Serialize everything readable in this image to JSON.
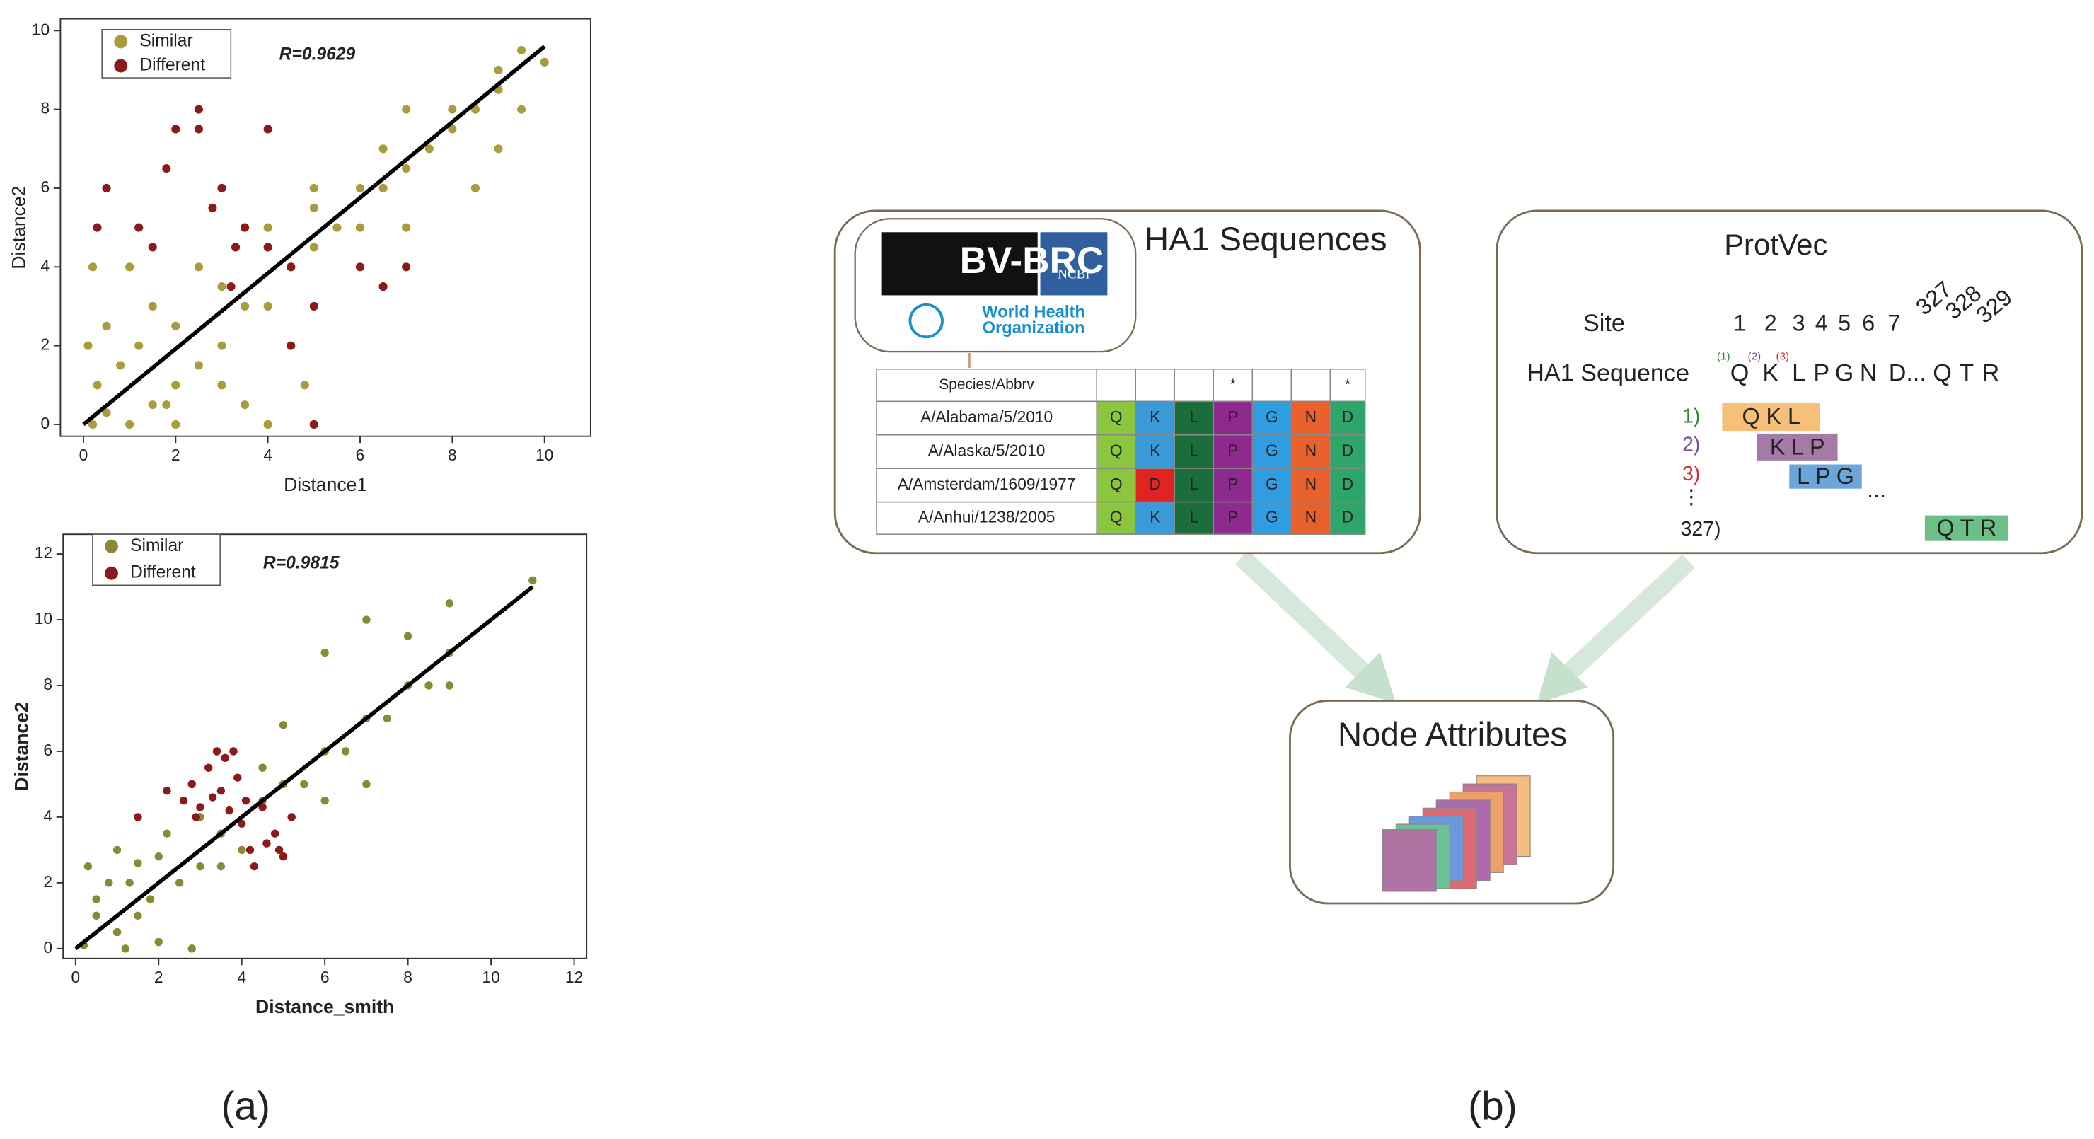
{
  "chart_data": [
    {
      "type": "scatter",
      "xlabel": "Distance1",
      "ylabel": "Distance2",
      "annotation": "R=0.9629",
      "xlim": [
        -0.5,
        11
      ],
      "ylim": [
        -0.3,
        10.3
      ],
      "xticks": [
        0,
        2,
        4,
        6,
        8,
        10
      ],
      "yticks": [
        0,
        2,
        4,
        6,
        8,
        10
      ],
      "legend": "upper left",
      "series": [
        {
          "name": "Similar",
          "color": "#a99c3b",
          "x": [
            0.2,
            0.5,
            1,
            1.5,
            0.3,
            0.8,
            1.2,
            2,
            2.5,
            0.5,
            1.5,
            2,
            3,
            3.5,
            0.2,
            1,
            2.5,
            3,
            4,
            4.5,
            4,
            5,
            5,
            5.5,
            6,
            6,
            6.5,
            7,
            6.5,
            7.5,
            8,
            8,
            8.5,
            9,
            9,
            9.5,
            10,
            3,
            2,
            4.8,
            3.5,
            4,
            1.8,
            0.1,
            5,
            7,
            8.5,
            9,
            7,
            9.5
          ],
          "y": [
            0,
            0.3,
            0,
            0.5,
            1,
            1.5,
            2,
            1,
            1.5,
            2.5,
            3,
            2.5,
            2,
            3,
            4,
            4,
            4,
            3.5,
            3,
            4,
            5,
            4.5,
            5.5,
            5,
            5,
            6,
            6,
            6.5,
            7,
            7,
            7.5,
            8,
            8,
            8.5,
            9,
            8,
            9.2,
            1,
            0,
            1,
            0.5,
            0,
            0.5,
            2,
            6,
            5,
            6,
            7,
            8,
            9.5
          ]
        },
        {
          "name": "Different",
          "color": "#8b1a1a",
          "x": [
            0.3,
            0.5,
            1.2,
            1.8,
            2,
            2.5,
            2.8,
            3,
            3.5,
            3.3,
            4,
            4,
            5,
            4.5,
            5,
            6,
            7,
            6.5,
            2.5,
            3.2,
            1.5,
            4.5
          ],
          "y": [
            5,
            6,
            5,
            6.5,
            7.5,
            8,
            5.5,
            6,
            5,
            4.5,
            7.5,
            4.5,
            3,
            2,
            0,
            4,
            4,
            3.5,
            7.5,
            3.5,
            4.5,
            4
          ]
        }
      ],
      "fit_line": {
        "color": "#000000",
        "x": [
          0,
          10
        ],
        "y": [
          0,
          9.6
        ]
      }
    },
    {
      "type": "scatter",
      "xlabel": "Distance_smith",
      "ylabel": "Distance2",
      "annotation": "R=0.9815",
      "xlim": [
        -0.3,
        12.3
      ],
      "ylim": [
        -0.3,
        12.6
      ],
      "xticks": [
        0,
        2,
        4,
        6,
        8,
        10,
        12
      ],
      "yticks": [
        0,
        2,
        4,
        6,
        8,
        10,
        12
      ],
      "legend": "upper left",
      "series": [
        {
          "name": "Similar",
          "color": "#8a8a36",
          "x": [
            0.2,
            0.5,
            1,
            1.3,
            1.8,
            2,
            2.5,
            0.3,
            1,
            1.5,
            2.2,
            3,
            3.5,
            4,
            4.5,
            5,
            5.5,
            6,
            6.5,
            7,
            7.5,
            8,
            8.5,
            9,
            9,
            2.8,
            1.2,
            0.8,
            3,
            5,
            6,
            7,
            8,
            9,
            11,
            6,
            7,
            4.5,
            3.5,
            2,
            0.5,
            1.5
          ],
          "y": [
            0.1,
            1,
            0.5,
            2,
            1.5,
            2.8,
            2,
            2.5,
            3,
            1,
            3.5,
            2.5,
            3.5,
            3,
            4.5,
            5,
            5,
            6,
            6,
            7,
            7,
            8,
            8,
            9,
            10.5,
            0,
            0,
            2,
            4,
            6.8,
            9,
            10,
            9.5,
            8,
            11.2,
            4.5,
            5,
            5.5,
            2.5,
            0.2,
            1.5,
            2.6
          ]
        },
        {
          "name": "Different",
          "color": "#8b1a1a",
          "x": [
            2.6,
            2.8,
            3,
            3.2,
            3.5,
            3.8,
            3.9,
            2.9,
            3.3,
            3.6,
            1.5,
            2.2,
            4,
            4.2,
            4.5,
            4.8,
            5,
            4.3,
            4.6,
            5.2,
            4.1,
            4.9,
            3.4,
            3.7
          ],
          "y": [
            4.5,
            5,
            4.3,
            5.5,
            4.8,
            6,
            5.2,
            4,
            4.6,
            5.8,
            4,
            4.8,
            3.8,
            3,
            4.3,
            3.5,
            2.8,
            2.5,
            3.2,
            4,
            4.5,
            3,
            6,
            4.2
          ]
        }
      ],
      "fit_line": {
        "color": "#000000",
        "x": [
          0,
          11
        ],
        "y": [
          0,
          11
        ]
      }
    }
  ],
  "panel_labels": [
    "(a)",
    "(b)"
  ],
  "diagram": {
    "ha1": {
      "title": "HA1 Sequences",
      "logos": [
        "BV-BRC",
        "NCBI",
        "World Health",
        "Organization"
      ],
      "header": [
        "Species/Abbrv",
        null,
        null,
        null,
        "*",
        null,
        null,
        "*"
      ],
      "rows": [
        {
          "name": "A/Alabama/5/2010",
          "residues": [
            "Q",
            "K",
            "L",
            "P",
            "G",
            "N",
            "D"
          ],
          "colors": [
            "#8cc63f",
            "#3b9bd8",
            "#1b6e3c",
            "#8e2a8e",
            "#2f9de0",
            "#e8602c",
            "#2ea66a"
          ]
        },
        {
          "name": "A/Alaska/5/2010",
          "residues": [
            "Q",
            "K",
            "L",
            "P",
            "G",
            "N",
            "D"
          ],
          "colors": [
            "#8cc63f",
            "#3b9bd8",
            "#1b6e3c",
            "#8e2a8e",
            "#2f9de0",
            "#e8602c",
            "#2ea66a"
          ]
        },
        {
          "name": "A/Amsterdam/1609/1977",
          "residues": [
            "Q",
            "D",
            "L",
            "P",
            "G",
            "N",
            "D"
          ],
          "colors": [
            "#8cc63f",
            "#e02424",
            "#1b6e3c",
            "#8e2a8e",
            "#2f9de0",
            "#e8602c",
            "#2ea66a"
          ]
        },
        {
          "name": "A/Anhui/1238/2005",
          "residues": [
            "Q",
            "K",
            "L",
            "P",
            "G",
            "N",
            "D"
          ],
          "colors": [
            "#8cc63f",
            "#3b9bd8",
            "#1b6e3c",
            "#8e2a8e",
            "#2f9de0",
            "#e8602c",
            "#2ea66a"
          ]
        }
      ]
    },
    "protvec": {
      "title": "ProtVec",
      "site_label": "Site",
      "sites": [
        1,
        2,
        3,
        4,
        5,
        6,
        7,
        327,
        328,
        329
      ],
      "sequence_label": "HA1 Sequence",
      "sequence": [
        "Q",
        "K",
        "L",
        "P",
        "G",
        "N",
        "D...",
        "Q",
        "T",
        "R"
      ],
      "superscripts": [
        {
          "text": "(1)",
          "color": "#2e8b3a"
        },
        {
          "text": "(2)",
          "color": "#7b4fa0"
        },
        {
          "text": "(3)",
          "color": "#d0303a"
        }
      ],
      "windows": [
        {
          "index": "1)",
          "index_color": "#2e8b3a",
          "text": "Q K L",
          "color": "#f5b96b"
        },
        {
          "index": "2)",
          "index_color": "#7b4fa0",
          "text": "K L P",
          "color": "#9c6b9c"
        },
        {
          "index": "3)",
          "index_color": "#d0303a",
          "text": "L P G",
          "color": "#5b9bd5"
        },
        {
          "index": "⋮",
          "index_color": "#222222",
          "text": "...",
          "color": null
        },
        {
          "index": "327)",
          "index_color": "#222222",
          "text": "Q T R",
          "color": "#5cb87a"
        }
      ]
    },
    "node": {
      "title": "Node Attributes"
    }
  }
}
